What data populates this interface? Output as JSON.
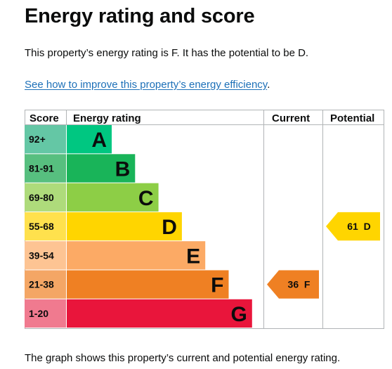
{
  "page": {
    "title": "Energy rating and score",
    "intro": "This property’s energy rating is F. It has the potential to be D.",
    "link_text": "See how to improve this property’s energy efficiency",
    "link_suffix": ".",
    "caption": "The graph shows this property’s current and potential energy rating."
  },
  "chart_data": {
    "type": "table",
    "headers": {
      "score": "Score",
      "rating": "Energy rating",
      "current": "Current",
      "potential": "Potential"
    },
    "bands": [
      {
        "score": "92+",
        "letter": "A",
        "color": "#00c781",
        "score_bg": "#64c7a5"
      },
      {
        "score": "81-91",
        "letter": "B",
        "color": "#19b459",
        "score_bg": "#57bf7f"
      },
      {
        "score": "69-80",
        "letter": "C",
        "color": "#8dce46",
        "score_bg": "#aedb7b"
      },
      {
        "score": "55-68",
        "letter": "D",
        "color": "#ffd500",
        "score_bg": "#ffe14d"
      },
      {
        "score": "39-54",
        "letter": "E",
        "color": "#fcaa65",
        "score_bg": "#fdc493"
      },
      {
        "score": "21-38",
        "letter": "F",
        "color": "#ef8023",
        "score_bg": "#f4a665"
      },
      {
        "score": "1-20",
        "letter": "G",
        "color": "#e9153b",
        "score_bg": "#f07a8f"
      }
    ],
    "current": {
      "value": 36,
      "letter": "F",
      "label": "36  F",
      "color": "#ef8023"
    },
    "potential": {
      "value": 61,
      "letter": "D",
      "label": "61  D",
      "color": "#ffd500"
    }
  }
}
